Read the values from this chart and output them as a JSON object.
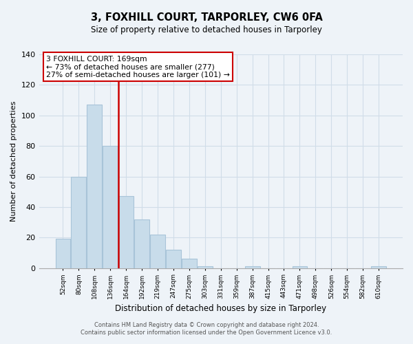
{
  "title": "3, FOXHILL COURT, TARPORLEY, CW6 0FA",
  "subtitle": "Size of property relative to detached houses in Tarporley",
  "xlabel": "Distribution of detached houses by size in Tarporley",
  "ylabel": "Number of detached properties",
  "bar_labels": [
    "52sqm",
    "80sqm",
    "108sqm",
    "136sqm",
    "164sqm",
    "192sqm",
    "219sqm",
    "247sqm",
    "275sqm",
    "303sqm",
    "331sqm",
    "359sqm",
    "387sqm",
    "415sqm",
    "443sqm",
    "471sqm",
    "498sqm",
    "526sqm",
    "554sqm",
    "582sqm",
    "610sqm"
  ],
  "bar_values": [
    19,
    60,
    107,
    80,
    47,
    32,
    22,
    12,
    6,
    1,
    0,
    0,
    1,
    0,
    0,
    1,
    0,
    0,
    0,
    0,
    1
  ],
  "bar_color": "#c8dcea",
  "bar_edge_color": "#a8c4d8",
  "highlight_line_color": "#cc0000",
  "ylim": [
    0,
    140
  ],
  "yticks": [
    0,
    20,
    40,
    60,
    80,
    100,
    120,
    140
  ],
  "annotation_title": "3 FOXHILL COURT: 169sqm",
  "annotation_line1": "← 73% of detached houses are smaller (277)",
  "annotation_line2": "27% of semi-detached houses are larger (101) →",
  "annotation_box_color": "#ffffff",
  "annotation_box_edge_color": "#cc0000",
  "footer_line1": "Contains HM Land Registry data © Crown copyright and database right 2024.",
  "footer_line2": "Contains public sector information licensed under the Open Government Licence v3.0.",
  "background_color": "#eef3f8",
  "plot_background_color": "#eef3f8",
  "grid_color": "#d0dde8"
}
